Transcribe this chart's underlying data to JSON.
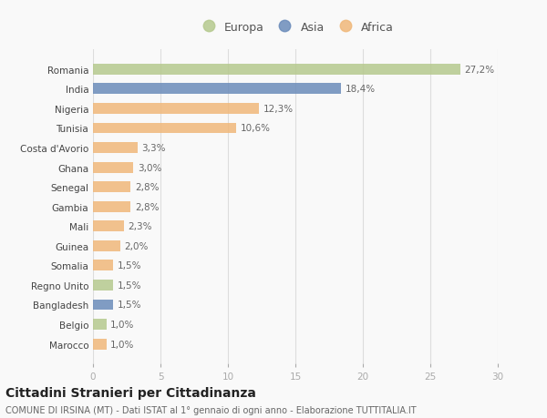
{
  "countries": [
    "Romania",
    "India",
    "Nigeria",
    "Tunisia",
    "Costa d'Avorio",
    "Ghana",
    "Senegal",
    "Gambia",
    "Mali",
    "Guinea",
    "Somalia",
    "Regno Unito",
    "Bangladesh",
    "Belgio",
    "Marocco"
  ],
  "values": [
    27.2,
    18.4,
    12.3,
    10.6,
    3.3,
    3.0,
    2.8,
    2.8,
    2.3,
    2.0,
    1.5,
    1.5,
    1.5,
    1.0,
    1.0
  ],
  "labels": [
    "27,2%",
    "18,4%",
    "12,3%",
    "10,6%",
    "3,3%",
    "3,0%",
    "2,8%",
    "2,8%",
    "2,3%",
    "2,0%",
    "1,5%",
    "1,5%",
    "1,5%",
    "1,0%",
    "1,0%"
  ],
  "continents": [
    "Europa",
    "Asia",
    "Africa",
    "Africa",
    "Africa",
    "Africa",
    "Africa",
    "Africa",
    "Africa",
    "Africa",
    "Africa",
    "Europa",
    "Asia",
    "Europa",
    "Africa"
  ],
  "colors": {
    "Europa": "#b5c98e",
    "Asia": "#6b8cba",
    "Africa": "#f0b87a"
  },
  "xlim": [
    0,
    30
  ],
  "xticks": [
    0,
    5,
    10,
    15,
    20,
    25,
    30
  ],
  "title": "Cittadini Stranieri per Cittadinanza",
  "subtitle": "COMUNE DI IRSINA (MT) - Dati ISTAT al 1° gennaio di ogni anno - Elaborazione TUTTITALIA.IT",
  "bg_color": "#f9f9f9",
  "grid_color": "#dddddd",
  "bar_height": 0.55,
  "label_fontsize": 7.5,
  "tick_fontsize": 7.5,
  "title_fontsize": 10,
  "subtitle_fontsize": 7
}
